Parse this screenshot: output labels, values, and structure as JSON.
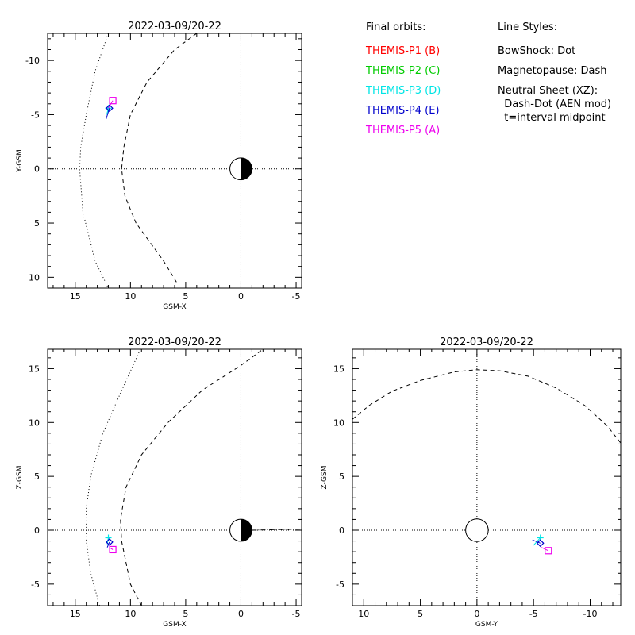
{
  "legend": {
    "orbits_title": "Final orbits:",
    "probes": [
      {
        "label": "THEMIS-P1 (B)",
        "color": "#ff0000"
      },
      {
        "label": "THEMIS-P2 (C)",
        "color": "#00cc00"
      },
      {
        "label": "THEMIS-P3 (D)",
        "color": "#00e5e5"
      },
      {
        "label": "THEMIS-P4 (E)",
        "color": "#0000cc"
      },
      {
        "label": "THEMIS-P5 (A)",
        "color": "#ee00ee"
      }
    ],
    "styles_title": "Line Styles:",
    "styles": [
      "BowShock: Dot",
      "Magnetopause: Dash",
      "Neutral Sheet (XZ):",
      "  Dash-Dot (AEN mod)",
      "  t=interval midpoint"
    ]
  },
  "chart_data": [
    {
      "type": "line",
      "title": "2022-03-09/20-22",
      "xlabel": "GSM-X",
      "ylabel": "Y-GSM",
      "xlim": [
        17.5,
        -5.5
      ],
      "ylim": [
        11,
        -12.5
      ],
      "xticks": [
        15,
        10,
        5,
        0,
        -5
      ],
      "yticks": [
        -10,
        -5,
        0,
        5,
        10
      ],
      "earth": {
        "x": 0,
        "y": 0,
        "dark_side": "right"
      },
      "bow_shock": [
        [
          12.0,
          -12.5
        ],
        [
          13.2,
          -9
        ],
        [
          14.0,
          -5
        ],
        [
          14.5,
          -2
        ],
        [
          14.6,
          0
        ],
        [
          14.3,
          4
        ],
        [
          13.2,
          8.5
        ],
        [
          12.0,
          11
        ]
      ],
      "magnetopause": [
        [
          4.0,
          -12.5
        ],
        [
          6,
          -11
        ],
        [
          8.5,
          -8
        ],
        [
          10.0,
          -5
        ],
        [
          10.6,
          -2
        ],
        [
          10.8,
          0
        ],
        [
          10.5,
          2.5
        ],
        [
          9.5,
          5
        ],
        [
          7.0,
          8.5
        ],
        [
          5.8,
          10.5
        ]
      ],
      "probes": [
        {
          "name": "THEMIS-P3 (D)",
          "x": 12.0,
          "y": -5.6,
          "marker": "+",
          "track": [
            [
              12.15,
              -5.0
            ],
            [
              12.0,
              -5.6
            ]
          ]
        },
        {
          "name": "THEMIS-P4 (E)",
          "x": 11.9,
          "y": -5.6,
          "marker": "diamond",
          "track": [
            [
              12.2,
              -4.6
            ],
            [
              11.9,
              -5.6
            ]
          ]
        },
        {
          "name": "THEMIS-P5 (A)",
          "x": 11.6,
          "y": -6.3,
          "marker": "square",
          "track": [
            [
              12.0,
              -5.6
            ],
            [
              11.6,
              -6.3
            ]
          ]
        }
      ]
    },
    {
      "type": "line",
      "title": "2022-03-09/20-22",
      "xlabel": "GSM-X",
      "ylabel": "Z-GSM",
      "xlim": [
        17.5,
        -5.5
      ],
      "ylim": [
        -7,
        16.8
      ],
      "xticks": [
        15,
        10,
        5,
        0,
        -5
      ],
      "yticks": [
        -5,
        0,
        5,
        10,
        15
      ],
      "earth": {
        "x": 0,
        "y": 0,
        "dark_side": "right"
      },
      "bow_shock": [
        [
          12.8,
          -7
        ],
        [
          13.6,
          -4
        ],
        [
          14.0,
          -1
        ],
        [
          14.0,
          2
        ],
        [
          13.6,
          5
        ],
        [
          12.5,
          9
        ],
        [
          11.0,
          12.5
        ],
        [
          9.1,
          16.8
        ]
      ],
      "magnetopause": [
        [
          9.0,
          -7
        ],
        [
          10.0,
          -5
        ],
        [
          10.8,
          -1
        ],
        [
          10.9,
          1
        ],
        [
          10.4,
          4
        ],
        [
          9.0,
          7
        ],
        [
          6.6,
          10
        ],
        [
          3.5,
          13
        ],
        [
          0,
          15.3
        ],
        [
          -2.0,
          16.8
        ]
      ],
      "neutral_sheet": [
        [
          -1.0,
          0.0
        ],
        [
          -3.0,
          0.05
        ],
        [
          -5.5,
          0.1
        ]
      ],
      "probes": [
        {
          "name": "THEMIS-P3 (D)",
          "x": 12.0,
          "y": -0.7,
          "marker": "+",
          "track": [
            [
              12.1,
              -1.3
            ],
            [
              12.0,
              -0.7
            ]
          ]
        },
        {
          "name": "THEMIS-P4 (E)",
          "x": 11.9,
          "y": -1.1,
          "marker": "diamond",
          "track": [
            [
              12.1,
              -1.6
            ],
            [
              11.9,
              -1.1
            ]
          ]
        },
        {
          "name": "THEMIS-P5 (A)",
          "x": 11.6,
          "y": -1.8,
          "marker": "square",
          "track": [
            [
              11.9,
              -1.6
            ],
            [
              11.6,
              -1.8
            ]
          ]
        }
      ]
    },
    {
      "type": "line",
      "title": "2022-03-09/20-22",
      "xlabel": "GSM-Y",
      "ylabel": "Z-GSM",
      "xlim": [
        11,
        -12.7
      ],
      "ylim": [
        -7,
        16.8
      ],
      "xticks": [
        10,
        5,
        0,
        -5,
        -10
      ],
      "yticks": [
        -5,
        0,
        5,
        10,
        15
      ],
      "earth": {
        "x": 0,
        "y": 0,
        "dark_side": "none"
      },
      "magnetopause": [
        [
          11,
          10.3
        ],
        [
          9.5,
          11.6
        ],
        [
          7.5,
          12.9
        ],
        [
          5,
          13.9
        ],
        [
          2,
          14.7
        ],
        [
          0,
          14.9
        ],
        [
          -2,
          14.8
        ],
        [
          -4.5,
          14.3
        ],
        [
          -7,
          13.2
        ],
        [
          -9.5,
          11.6
        ],
        [
          -11.5,
          9.7
        ],
        [
          -12.7,
          8.1
        ]
      ],
      "probes": [
        {
          "name": "THEMIS-P3 (D)",
          "x": -5.6,
          "y": -0.7,
          "marker": "+",
          "track": [
            [
              -5.0,
              -1.4
            ],
            [
              -5.6,
              -0.7
            ]
          ]
        },
        {
          "name": "THEMIS-P4 (E)",
          "x": -5.6,
          "y": -1.2,
          "marker": "diamond",
          "track": [
            [
              -4.9,
              -0.9
            ],
            [
              -5.6,
              -1.2
            ]
          ]
        },
        {
          "name": "THEMIS-P5 (A)",
          "x": -6.3,
          "y": -1.9,
          "marker": "square",
          "track": [
            [
              -5.7,
              -1.6
            ],
            [
              -6.3,
              -1.9
            ]
          ]
        }
      ]
    }
  ]
}
